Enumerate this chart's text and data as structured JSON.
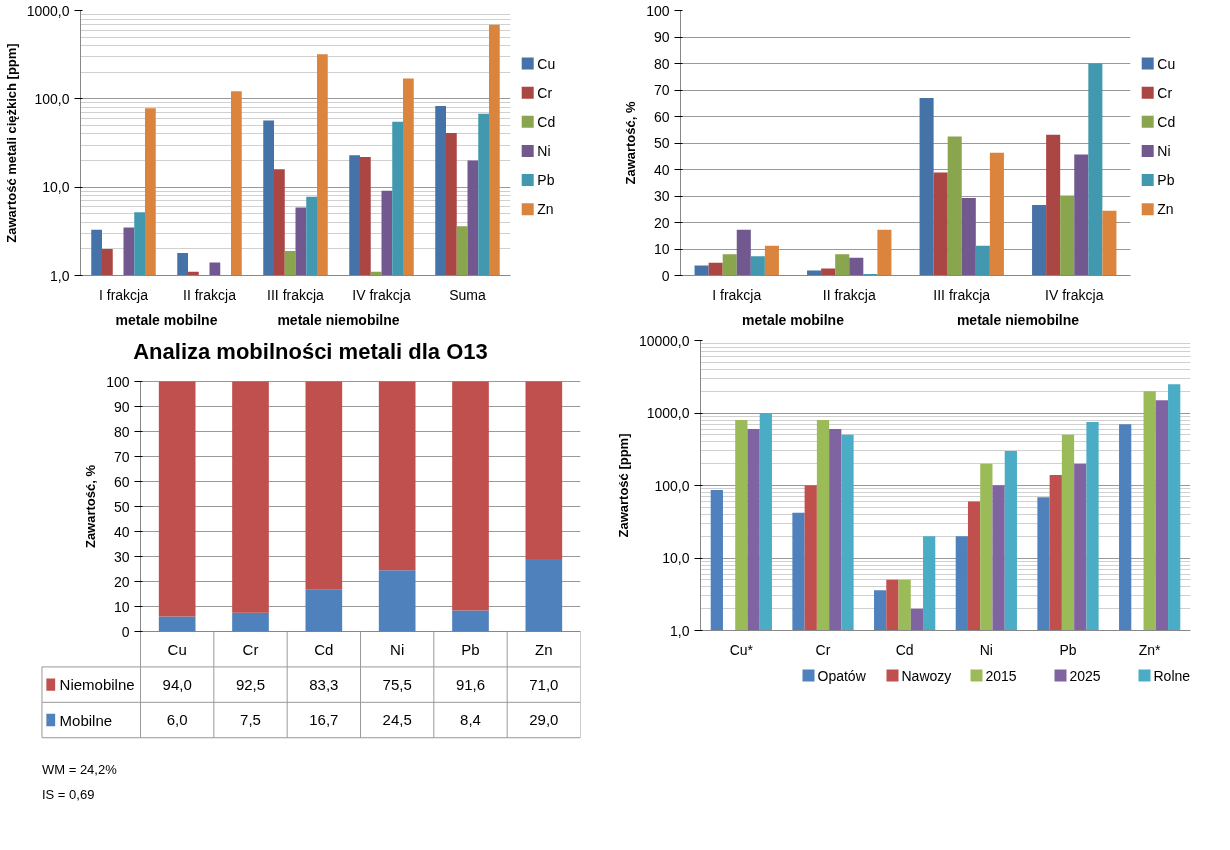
{
  "chart_data": [
    {
      "type": "bar",
      "categories": [
        "I frakcja",
        "II frakcja",
        "III frakcja",
        "IV frakcja",
        "Suma"
      ],
      "ylabel": "Zawartość metali ciężkich [ppm]",
      "log": true,
      "ylim": [
        1,
        1000
      ],
      "yticks": [
        {
          "value": 1,
          "label": "1,0"
        },
        {
          "value": 10,
          "label": "10,0"
        },
        {
          "value": 100,
          "label": "100,0"
        },
        {
          "value": 1000,
          "label": "1000,0"
        }
      ],
      "grid": "y",
      "legend": "right",
      "annotations": [
        "metale mobilne",
        "metale niemobilne"
      ],
      "series": [
        {
          "name": "Cu",
          "color": "#4572a7",
          "values": [
            3.3,
            1.8,
            57,
            23,
            83
          ]
        },
        {
          "name": "Cr",
          "color": "#aa4643",
          "values": [
            2.0,
            1.1,
            16,
            22,
            41
          ]
        },
        {
          "name": "Cd",
          "color": "#89a54e",
          "values": [
            null,
            null,
            1.9,
            1.1,
            3.6
          ]
        },
        {
          "name": "Ni",
          "color": "#71588f",
          "values": [
            3.5,
            1.4,
            5.9,
            9.1,
            20
          ]
        },
        {
          "name": "Pb",
          "color": "#4198af",
          "values": [
            5.2,
            null,
            7.8,
            55,
            68
          ]
        },
        {
          "name": "Zn",
          "color": "#db843d",
          "values": [
            78,
            122,
            320,
            170,
            690
          ]
        }
      ]
    },
    {
      "type": "bar",
      "categories": [
        "I frakcja",
        "II frakcja",
        "III frakcja",
        "IV frakcja"
      ],
      "ylabel": "Zawartość, %",
      "ylim": [
        0,
        100
      ],
      "yticks": [
        0,
        10,
        20,
        30,
        40,
        50,
        60,
        70,
        80,
        90,
        100
      ],
      "grid": "y",
      "legend": "right",
      "annotations": [
        "metale mobilne",
        "metale niemobilne"
      ],
      "series": [
        {
          "name": "Cu",
          "color": "#4572a7",
          "values": [
            3.8,
            1.9,
            67,
            26.6
          ]
        },
        {
          "name": "Cr",
          "color": "#aa4643",
          "values": [
            4.8,
            2.6,
            38.9,
            53.1
          ]
        },
        {
          "name": "Cd",
          "color": "#89a54e",
          "values": [
            8,
            8,
            52.5,
            30.2
          ]
        },
        {
          "name": "Ni",
          "color": "#71588f",
          "values": [
            17.3,
            6.7,
            29.2,
            45.7
          ]
        },
        {
          "name": "Pb",
          "color": "#4198af",
          "values": [
            7.3,
            0.6,
            11.2,
            80
          ]
        },
        {
          "name": "Zn",
          "color": "#db843d",
          "values": [
            11.2,
            17.3,
            46.3,
            24.4
          ]
        }
      ]
    },
    {
      "type": "bar",
      "title": "Analiza mobilności metali dla O13",
      "categories": [
        "Cu",
        "Cr",
        "Cd",
        "Ni",
        "Pb",
        "Zn"
      ],
      "ylabel": "Zawartość, %",
      "stacked": true,
      "legend": "bottom",
      "ylim": [
        0,
        100
      ],
      "yticks": [
        0,
        10,
        20,
        30,
        40,
        50,
        60,
        70,
        80,
        90,
        100
      ],
      "grid": "y",
      "annotations": [
        "WM = 24,2%",
        "IS = 0,69"
      ],
      "series": [
        {
          "name": "Mobilne",
          "color": "#4f81bd",
          "values": [
            6.0,
            7.5,
            16.7,
            24.5,
            8.4,
            29.0
          ],
          "value_labels": [
            "6,0",
            "7,5",
            "16,7",
            "24,5",
            "8,4",
            "29,0"
          ]
        },
        {
          "name": "Niemobilne",
          "color": "#c0504d",
          "values": [
            94.0,
            92.5,
            83.3,
            75.5,
            91.6,
            71.0
          ],
          "value_labels": [
            "94,0",
            "92,5",
            "83,3",
            "75,5",
            "91,6",
            "71,0"
          ]
        }
      ]
    },
    {
      "type": "bar",
      "categories": [
        "Cu*",
        "Cr",
        "Cd",
        "Ni",
        "Pb",
        "Zn*"
      ],
      "ylabel": "Zawartość [ppm]",
      "log": true,
      "ylim": [
        1,
        10000
      ],
      "yticks": [
        {
          "value": 1,
          "label": "1,0"
        },
        {
          "value": 10,
          "label": "10,0"
        },
        {
          "value": 100,
          "label": "100,0"
        },
        {
          "value": 1000,
          "label": "1000,0"
        },
        {
          "value": 10000,
          "label": "10000,0"
        }
      ],
      "grid": "y",
      "legend": "bottom",
      "series": [
        {
          "name": "Opatów",
          "color": "#4f81bd",
          "values": [
            87,
            42,
            3.6,
            20,
            69,
            700
          ]
        },
        {
          "name": "Nawozy",
          "color": "#c0504d",
          "values": [
            null,
            100,
            5,
            60,
            140,
            null
          ]
        },
        {
          "name": "2015",
          "color": "#9bbb59",
          "values": [
            800,
            800,
            5,
            200,
            500,
            2000
          ]
        },
        {
          "name": "2025",
          "color": "#8064a2",
          "values": [
            600,
            600,
            2,
            100,
            200,
            1500
          ]
        },
        {
          "name": "Rolne",
          "color": "#4bacc6",
          "values": [
            1000,
            500,
            20,
            300,
            750,
            2500
          ]
        }
      ]
    }
  ]
}
